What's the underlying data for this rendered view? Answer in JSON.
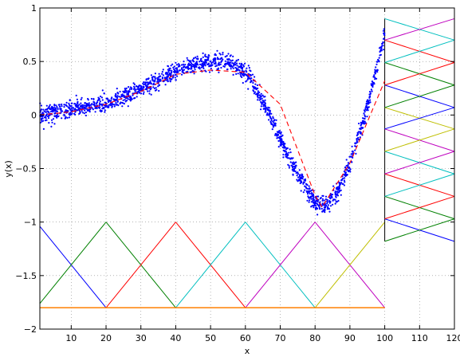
{
  "chart_data": {
    "type": "scatter",
    "title": "",
    "xlabel": "x",
    "ylabel": "y(x)",
    "xlim": [
      1,
      120
    ],
    "ylim": [
      -2,
      1
    ],
    "grid": true,
    "xticks": [
      10,
      20,
      30,
      40,
      50,
      60,
      70,
      80,
      90,
      100,
      110,
      120
    ],
    "xtick_labels": [
      "10",
      "20",
      "30",
      "40",
      "50",
      "60",
      "70",
      "80",
      "90",
      "100",
      "110",
      "120"
    ],
    "yticks": [
      -2,
      -1.5,
      -1,
      -0.5,
      0,
      0.5,
      1
    ],
    "ytick_labels": [
      "−2",
      "−1.5",
      "−1",
      "−0.5",
      "0",
      "0.5",
      "1"
    ],
    "colors": {
      "scatter": "#0000ff",
      "fit_line": "#ff0000",
      "basis": [
        "#0000ff",
        "#008000",
        "#ff0000",
        "#00bfbf",
        "#bf00bf",
        "#bfbf00"
      ],
      "baseline": "#ff7f00",
      "grid": "#888888"
    },
    "scatter_points": {
      "x_range": [
        1,
        100
      ],
      "count": 1800,
      "noise_sd": 0.04,
      "curve_x": [
        1,
        5,
        10,
        15,
        20,
        25,
        30,
        35,
        40,
        45,
        50,
        55,
        60,
        65,
        70,
        75,
        80,
        83,
        86,
        90,
        94,
        97,
        100
      ],
      "curve_y": [
        0.0,
        0.03,
        0.05,
        0.08,
        0.11,
        0.16,
        0.24,
        0.32,
        0.4,
        0.47,
        0.5,
        0.5,
        0.4,
        0.14,
        -0.22,
        -0.56,
        -0.82,
        -0.85,
        -0.75,
        -0.45,
        -0.05,
        0.35,
        0.75
      ]
    },
    "fit_line": {
      "style": "dashed",
      "x": [
        1,
        10,
        20,
        30,
        40,
        50,
        60,
        70,
        80,
        82,
        90,
        100
      ],
      "y": [
        0.0,
        0.03,
        0.1,
        0.22,
        0.38,
        0.42,
        0.4,
        0.1,
        -0.75,
        -0.86,
        -0.45,
        0.32
      ]
    },
    "basis_functions": {
      "low": -1.8,
      "high": -1.0,
      "centers": [
        0,
        20,
        40,
        60,
        80,
        100
      ],
      "width": 20,
      "x_range": [
        1,
        100
      ]
    },
    "side_basis": {
      "x_left": 100,
      "x_right": 120,
      "y_min": -1.18,
      "y_max": 0.9,
      "centers": [
        -1.18,
        -0.97,
        -0.76,
        -0.55,
        -0.34,
        -0.13,
        0.07,
        0.28,
        0.49,
        0.7,
        0.9
      ]
    }
  }
}
